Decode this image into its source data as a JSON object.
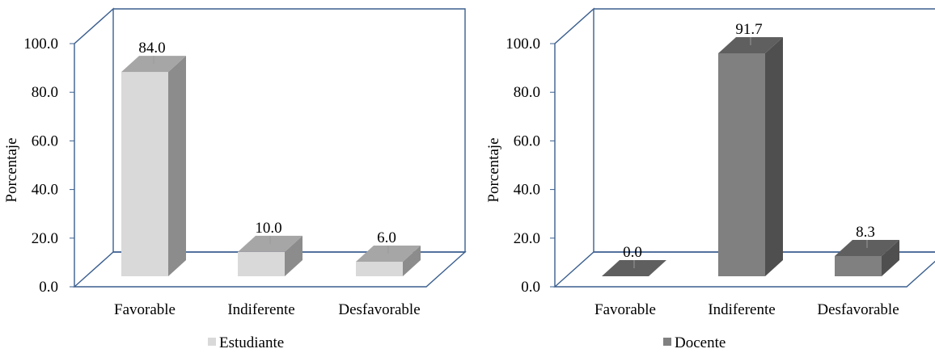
{
  "chart_data": [
    {
      "type": "bar",
      "categories": [
        "Favorable",
        "Indiferente",
        "Desfavorable"
      ],
      "series": [
        {
          "name": "Estudiante",
          "values": [
            84.0,
            10.0,
            6.0
          ],
          "labels": [
            "84.0",
            "10.0",
            "6.0"
          ]
        }
      ],
      "ylabel": "Porcentaje",
      "xlabel": "",
      "ylim": [
        0,
        100
      ],
      "yticks": [
        "0.0",
        "20.0",
        "40.0",
        "60.0",
        "80.0",
        "100.0"
      ],
      "legend_position": "bottom",
      "style": "3d-column",
      "grid": false,
      "colors": {
        "front": "#d9d9d9",
        "top": "#a6a6a6",
        "side": "#8c8c8c",
        "axis": "#3b5f8f"
      }
    },
    {
      "type": "bar",
      "categories": [
        "Favorable",
        "Indiferente",
        "Desfavorable"
      ],
      "series": [
        {
          "name": "Docente",
          "values": [
            0.0,
            91.7,
            8.3
          ],
          "labels": [
            "0.0",
            "91.7",
            "8.3"
          ]
        }
      ],
      "ylabel": "Porcentaje",
      "xlabel": "",
      "ylim": [
        0,
        100
      ],
      "yticks": [
        "0.0",
        "20.0",
        "40.0",
        "60.0",
        "80.0",
        "100.0"
      ],
      "legend_position": "bottom",
      "style": "3d-column",
      "grid": false,
      "colors": {
        "front": "#808080",
        "top": "#5f5f5f",
        "side": "#4f4f4f",
        "axis": "#3b5f8f"
      }
    }
  ]
}
